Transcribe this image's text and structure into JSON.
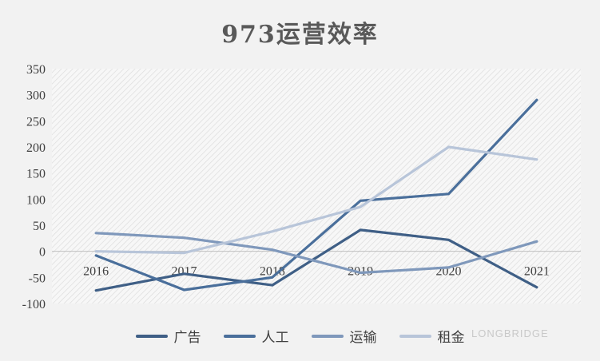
{
  "chart_data": {
    "type": "line",
    "title": "973运营效率",
    "xlabel": "",
    "ylabel": "",
    "categories": [
      "2016",
      "2017",
      "2018",
      "2019",
      "2020",
      "2021"
    ],
    "ylim": [
      -100,
      350
    ],
    "yticks": [
      -100,
      -50,
      0,
      50,
      100,
      150,
      200,
      250,
      300,
      350
    ],
    "grid": false,
    "legend_position": "bottom",
    "series": [
      {
        "name": "广告",
        "color": "#3f5f86",
        "values": [
          -75,
          -43,
          -65,
          41,
          22,
          -69
        ]
      },
      {
        "name": "人工",
        "color": "#4a6f9b",
        "values": [
          -8,
          -74,
          -50,
          97,
          110,
          290
        ]
      },
      {
        "name": "运输",
        "color": "#7f98bb",
        "values": [
          35,
          26,
          3,
          -41,
          -31,
          19
        ]
      },
      {
        "name": "租金",
        "color": "#b8c5d9",
        "values": [
          0,
          -3,
          38,
          85,
          200,
          176
        ]
      }
    ]
  },
  "watermark": "LONGBRIDGE"
}
